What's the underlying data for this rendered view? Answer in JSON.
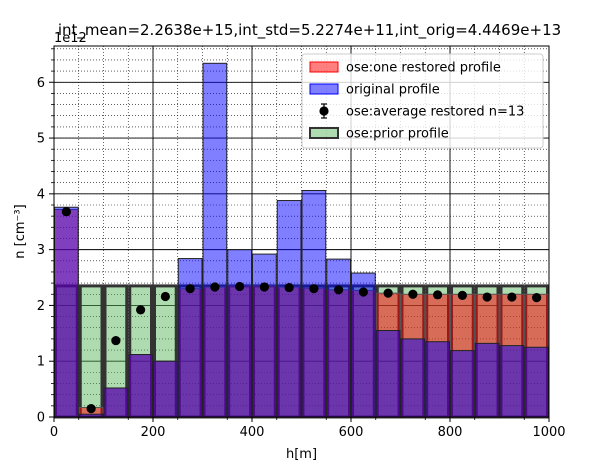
{
  "chart_data": {
    "type": "bar",
    "title": "int_mean=2.2638e+15,int_std=5.2274e+11,int_orig=4.4469e+13",
    "xlabel": "h[m]",
    "ylabel": "n [cm⁻³]",
    "y_offset_text": "1e12",
    "xlim": [
      0,
      1000
    ],
    "ylim": [
      0,
      6.65
    ],
    "y_scale": 1000000000000.0,
    "grid": true,
    "legend_position": "upper-right",
    "x_ticks": [
      0,
      200,
      400,
      600,
      800,
      1000
    ],
    "x_tick_labels": [
      "0",
      "200",
      "400",
      "600",
      "800",
      "1000"
    ],
    "y_ticks": [
      0,
      1,
      2,
      3,
      4,
      5,
      6
    ],
    "y_tick_labels": [
      "0",
      "1",
      "2",
      "3",
      "4",
      "5",
      "6"
    ],
    "bin_width": 50,
    "bin_centers": [
      25,
      75,
      125,
      175,
      225,
      275,
      325,
      375,
      425,
      475,
      525,
      575,
      625,
      675,
      725,
      775,
      825,
      875,
      925,
      975
    ],
    "series": [
      {
        "name": "ose:one restored profile",
        "kind": "bar",
        "color": "#ff0000",
        "values": [
          3.72,
          0.17,
          0.52,
          1.12,
          1.0,
          2.3,
          2.33,
          2.35,
          2.35,
          2.33,
          2.31,
          2.28,
          2.27,
          2.22,
          2.2,
          2.2,
          2.2,
          2.2,
          2.2,
          2.2
        ]
      },
      {
        "name": "original profile",
        "kind": "bar",
        "color": "#0000ff",
        "values": [
          3.76,
          0.05,
          0.52,
          1.12,
          1.0,
          2.84,
          6.34,
          3.0,
          2.92,
          3.88,
          4.06,
          2.83,
          2.58,
          1.55,
          1.4,
          1.35,
          1.19,
          1.32,
          1.28,
          1.25
        ]
      },
      {
        "name": "ose:average restored n=13",
        "kind": "errorbar",
        "color": "#000000",
        "values": [
          3.68,
          0.15,
          1.37,
          1.92,
          2.16,
          2.3,
          2.33,
          2.34,
          2.33,
          2.32,
          2.3,
          2.28,
          2.24,
          2.22,
          2.2,
          2.19,
          2.18,
          2.15,
          2.15,
          2.14
        ],
        "errors": [
          0.06,
          0.04,
          0.05,
          0.05,
          0.05,
          0.04,
          0.04,
          0.04,
          0.04,
          0.04,
          0.04,
          0.04,
          0.04,
          0.04,
          0.04,
          0.04,
          0.04,
          0.04,
          0.04,
          0.04
        ]
      },
      {
        "name": "ose:prior profile",
        "kind": "bar",
        "color": "#008000",
        "values": [
          2.35,
          2.35,
          2.35,
          2.35,
          2.35,
          2.35,
          2.35,
          2.35,
          2.35,
          2.35,
          2.35,
          2.35,
          2.35,
          2.35,
          2.35,
          2.35,
          2.35,
          2.35,
          2.35,
          2.35
        ]
      }
    ]
  }
}
